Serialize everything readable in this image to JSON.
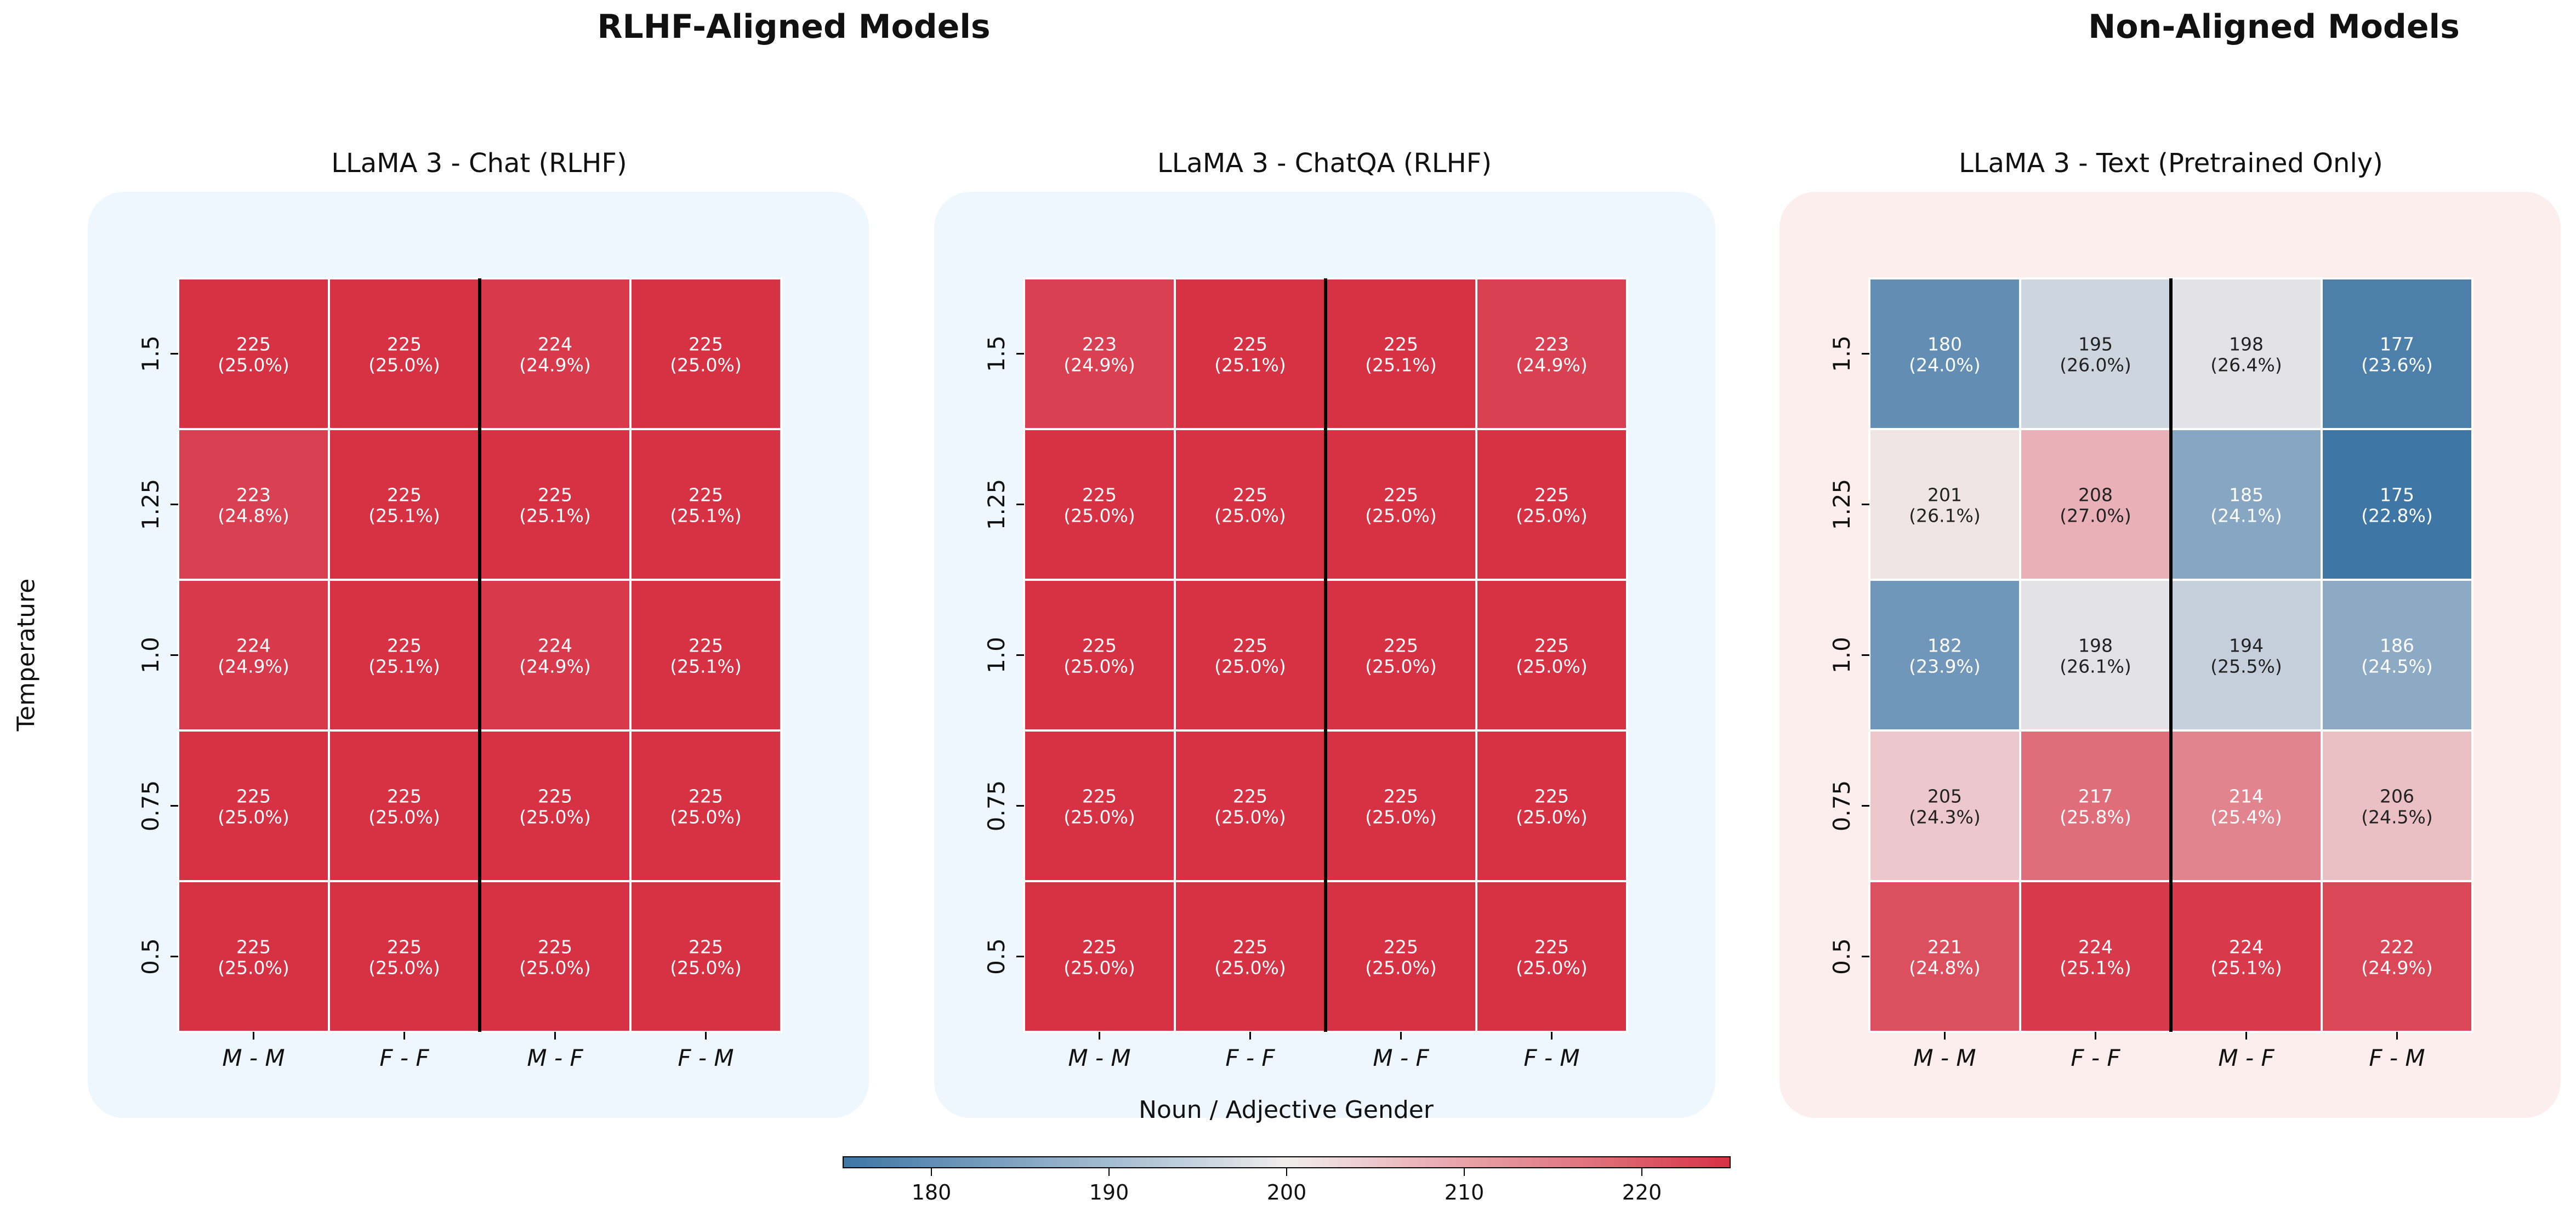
{
  "group_titles": {
    "left": "RLHF-Aligned Models",
    "right": "Non-Aligned Models"
  },
  "y_axis_label": "Temperature",
  "x_axis_label": "Noun / Adjective Gender",
  "colors": {
    "low": "#3e76a5",
    "mid": "#f1eded",
    "high": "#d73144",
    "aligned_panel_bg": "#eef6fe",
    "non_aligned_panel_bg": "#fdeeee"
  },
  "colorbar": {
    "min": 175,
    "max": 225,
    "ticks": [
      180,
      190,
      200,
      210,
      220
    ]
  },
  "chart_data": [
    {
      "type": "heatmap",
      "title": "LLaMA 3 - Chat (RLHF)",
      "group": "aligned",
      "x_categories": [
        "M - M",
        "F - F",
        "M - F",
        "F - M"
      ],
      "y_categories": [
        "1.5",
        "1.25",
        "1.0",
        "0.75",
        "0.5"
      ],
      "values": [
        [
          225,
          225,
          224,
          225
        ],
        [
          223,
          225,
          225,
          225
        ],
        [
          224,
          225,
          224,
          225
        ],
        [
          225,
          225,
          225,
          225
        ],
        [
          225,
          225,
          225,
          225
        ]
      ],
      "percents": [
        [
          "(25.0%)",
          "(25.0%)",
          "(24.9%)",
          "(25.0%)"
        ],
        [
          "(24.8%)",
          "(25.1%)",
          "(25.1%)",
          "(25.1%)"
        ],
        [
          "(24.9%)",
          "(25.1%)",
          "(24.9%)",
          "(25.1%)"
        ],
        [
          "(25.0%)",
          "(25.0%)",
          "(25.0%)",
          "(25.0%)"
        ],
        [
          "(25.0%)",
          "(25.0%)",
          "(25.0%)",
          "(25.0%)"
        ]
      ]
    },
    {
      "type": "heatmap",
      "title": "LLaMA 3 - ChatQA (RLHF)",
      "group": "aligned",
      "x_categories": [
        "M - M",
        "F - F",
        "M - F",
        "F - M"
      ],
      "y_categories": [
        "1.5",
        "1.25",
        "1.0",
        "0.75",
        "0.5"
      ],
      "values": [
        [
          223,
          225,
          225,
          223
        ],
        [
          225,
          225,
          225,
          225
        ],
        [
          225,
          225,
          225,
          225
        ],
        [
          225,
          225,
          225,
          225
        ],
        [
          225,
          225,
          225,
          225
        ]
      ],
      "percents": [
        [
          "(24.9%)",
          "(25.1%)",
          "(25.1%)",
          "(24.9%)"
        ],
        [
          "(25.0%)",
          "(25.0%)",
          "(25.0%)",
          "(25.0%)"
        ],
        [
          "(25.0%)",
          "(25.0%)",
          "(25.0%)",
          "(25.0%)"
        ],
        [
          "(25.0%)",
          "(25.0%)",
          "(25.0%)",
          "(25.0%)"
        ],
        [
          "(25.0%)",
          "(25.0%)",
          "(25.0%)",
          "(25.0%)"
        ]
      ]
    },
    {
      "type": "heatmap",
      "title": "LLaMA 3 - Text (Pretrained Only)",
      "group": "non_aligned",
      "x_categories": [
        "M - M",
        "F - F",
        "M - F",
        "F - M"
      ],
      "y_categories": [
        "1.5",
        "1.25",
        "1.0",
        "0.75",
        "0.5"
      ],
      "values": [
        [
          180,
          195,
          198,
          177
        ],
        [
          201,
          208,
          185,
          175
        ],
        [
          182,
          198,
          194,
          186
        ],
        [
          205,
          217,
          214,
          206
        ],
        [
          221,
          224,
          224,
          222
        ]
      ],
      "percents": [
        [
          "(24.0%)",
          "(26.0%)",
          "(26.4%)",
          "(23.6%)"
        ],
        [
          "(26.1%)",
          "(27.0%)",
          "(24.1%)",
          "(22.8%)"
        ],
        [
          "(23.9%)",
          "(26.1%)",
          "(25.5%)",
          "(24.5%)"
        ],
        [
          "(24.3%)",
          "(25.8%)",
          "(25.4%)",
          "(24.5%)"
        ],
        [
          "(24.8%)",
          "(25.1%)",
          "(25.1%)",
          "(24.9%)"
        ]
      ]
    }
  ]
}
